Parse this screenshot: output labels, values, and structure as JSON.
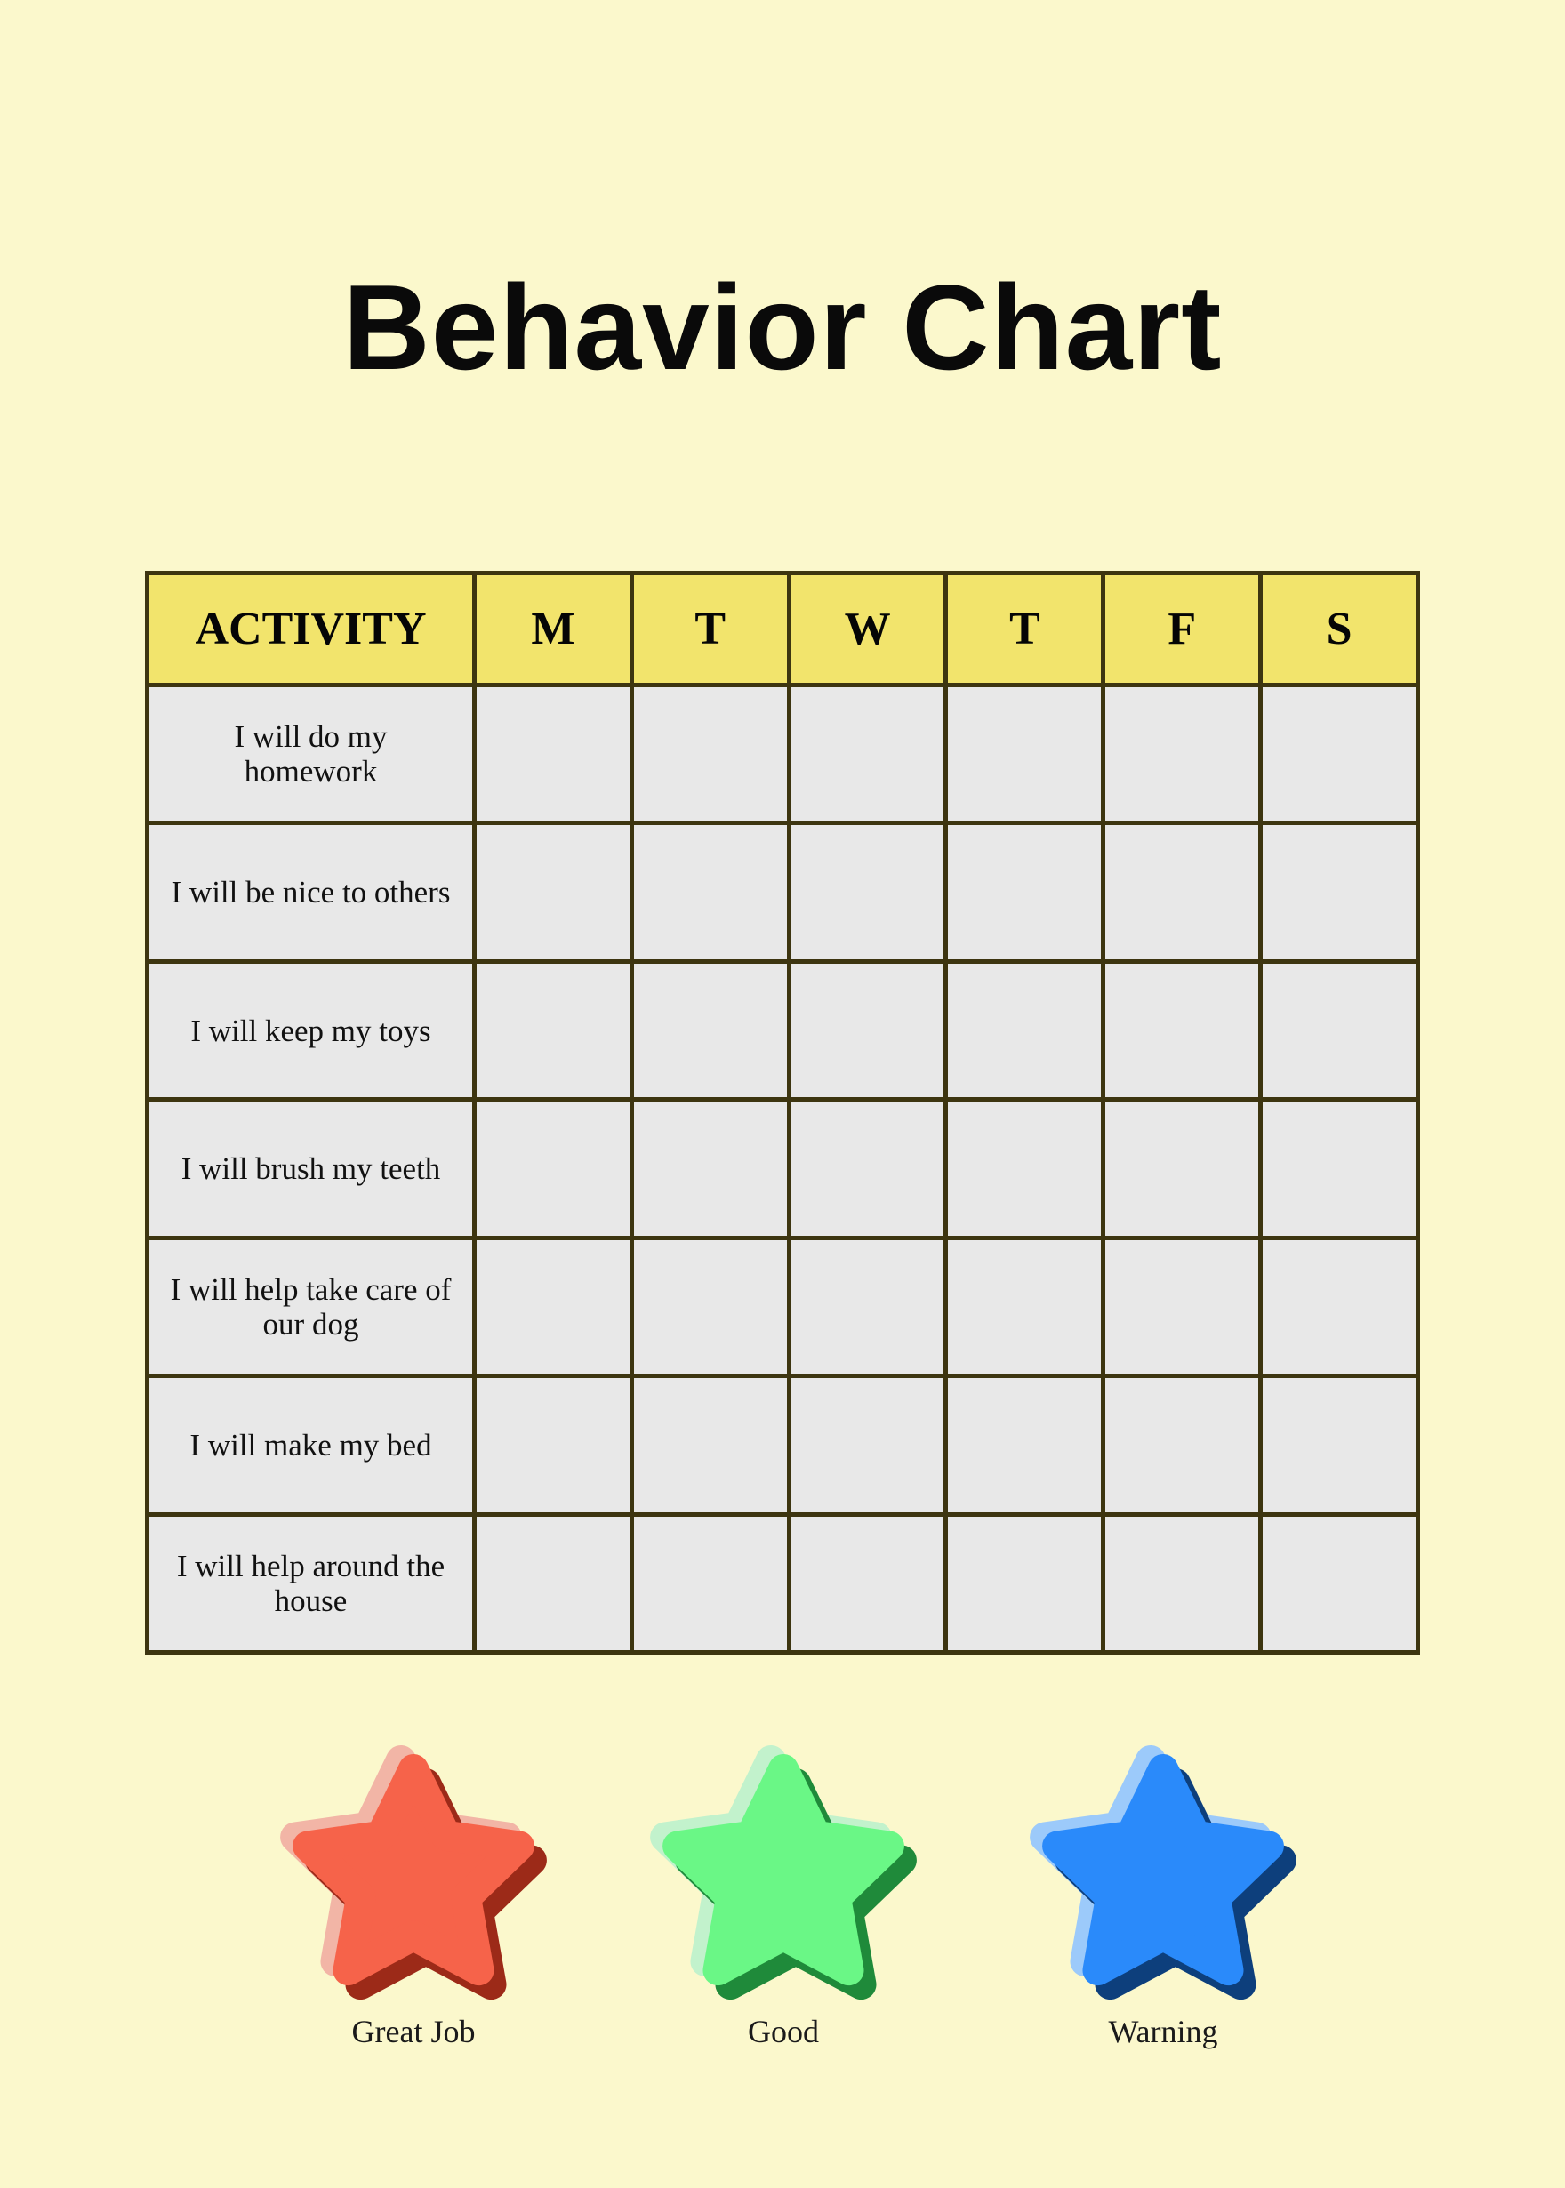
{
  "title": "Behavior Chart",
  "table": {
    "headers": [
      "ACTIVITY",
      "M",
      "T",
      "W",
      "T",
      "F",
      "S"
    ],
    "activities": [
      "I will do my homework",
      "I will be nice to others",
      "I will keep my toys",
      "I will brush my teeth",
      "I will help take care of our dog",
      "I will make my bed",
      "I will help around the house"
    ]
  },
  "colors": {
    "background": "#fbf8cc",
    "header": "#f2e46c",
    "cell": "#e8e8e8",
    "border": "#3d3510"
  },
  "legend": [
    {
      "label": "Great Job",
      "icon": "red-star-icon",
      "main": "#f6634a",
      "light": "#f2b5a6",
      "dark": "#9c2a18"
    },
    {
      "label": "Good",
      "icon": "green-star-icon",
      "main": "#6af786",
      "light": "#c2f2cc",
      "dark": "#1f8a3a"
    },
    {
      "label": "Warning",
      "icon": "blue-star-icon",
      "main": "#2a8afa",
      "light": "#9ccafa",
      "dark": "#0d3f7c"
    }
  ]
}
